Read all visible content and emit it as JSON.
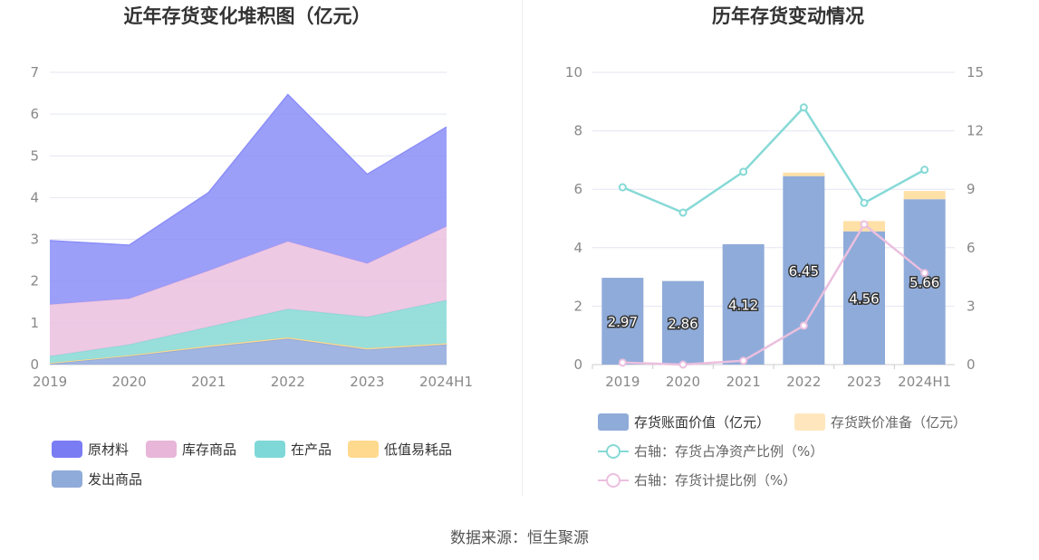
{
  "source": "数据来源：恒生聚源",
  "charts": [
    {
      "type": "area",
      "title": "近年存货变化堆积图（亿元）",
      "categories": [
        "2019",
        "2020",
        "2021",
        "2022",
        "2023",
        "2024H1"
      ],
      "yticks": [
        "0",
        "1",
        "2",
        "3",
        "4",
        "5",
        "6",
        "7"
      ],
      "ylim": [
        0,
        7
      ],
      "series": [
        {
          "name": "发出商品",
          "color": "#8fa8dc",
          "values": [
            0.02,
            0.2,
            0.42,
            0.62,
            0.36,
            0.48
          ]
        },
        {
          "name": "低值易耗品",
          "color": "#ffd98e",
          "values": [
            0.02,
            0.02,
            0.03,
            0.03,
            0.03,
            0.03
          ]
        },
        {
          "name": "在产品",
          "color": "#86d9d6",
          "values": [
            0.16,
            0.26,
            0.45,
            0.68,
            0.75,
            1.03
          ]
        },
        {
          "name": "库存商品",
          "color": "#ebbfdf",
          "values": [
            1.24,
            1.1,
            1.35,
            1.62,
            1.28,
            1.77
          ]
        },
        {
          "name": "原材料",
          "color": "#8b8ef7",
          "values": [
            1.53,
            1.28,
            1.87,
            3.52,
            2.14,
            2.38
          ]
        }
      ],
      "legend": [
        {
          "name": "原材料",
          "color": "#7a7cf4"
        },
        {
          "name": "库存商品",
          "color": "#e8b6d8"
        },
        {
          "name": "在产品",
          "color": "#7fd8d8"
        },
        {
          "name": "低值易耗品",
          "color": "#ffd98e"
        },
        {
          "name": "发出商品",
          "color": "#8fabd9"
        }
      ]
    },
    {
      "type": "bar+line",
      "title": "历年存货变动情况",
      "categories": [
        "2019",
        "2020",
        "2021",
        "2022",
        "2023",
        "2024H1"
      ],
      "yticks_left": [
        "0",
        "2",
        "4",
        "6",
        "8",
        "10"
      ],
      "ylim_left": [
        0,
        10
      ],
      "yticks_right": [
        "0",
        "3",
        "6",
        "9",
        "12",
        "15"
      ],
      "ylim_right": [
        0,
        15
      ],
      "bars": [
        {
          "name": "存货账面价值（亿元）",
          "color": "#8fabd9",
          "values": [
            2.97,
            2.86,
            4.12,
            6.45,
            4.56,
            5.66
          ],
          "labels": [
            "2.97",
            "2.86",
            "4.12",
            "6.45",
            "4.56",
            "5.66"
          ]
        },
        {
          "name": "存货跌价准备（亿元）",
          "color": "#ffe0a6",
          "values": [
            0.0,
            0.0,
            0.0,
            0.12,
            0.35,
            0.28
          ]
        }
      ],
      "lines": [
        {
          "name": "右轴：存货占净资产比例（%）",
          "color": "#86d9d6",
          "values": [
            9.1,
            7.8,
            9.9,
            13.2,
            8.3,
            10.0
          ]
        },
        {
          "name": "右轴：存货计提比例（%）",
          "color": "#ebbfdf",
          "values": [
            0.1,
            0.0,
            0.2,
            2.0,
            7.2,
            4.7
          ]
        }
      ],
      "legend": [
        {
          "name": "存货账面价值（亿元）",
          "color": "#8fabd9",
          "kind": "box"
        },
        {
          "name": "存货跌价准备（亿元）",
          "color": "#ffe6bd",
          "kind": "box"
        },
        {
          "name": "右轴：存货占净资产比例（%）",
          "color": "#86d9d6",
          "kind": "line"
        },
        {
          "name": "右轴：存货计提比例（%）",
          "color": "#ebbfdf",
          "kind": "line"
        }
      ]
    }
  ]
}
